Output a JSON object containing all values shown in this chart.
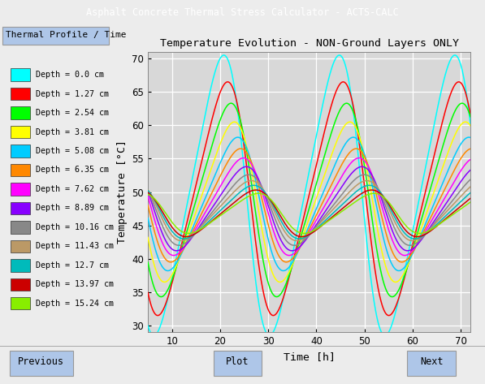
{
  "title": "Temperature Evolution - NON-Ground Layers ONLY",
  "xlabel": "Time [h]",
  "ylabel": "Temperature [°C]",
  "xlim": [
    5,
    72
  ],
  "ylim": [
    29,
    71
  ],
  "xticks": [
    10,
    20,
    30,
    40,
    50,
    60,
    70
  ],
  "yticks": [
    30,
    35,
    40,
    45,
    50,
    55,
    60,
    65,
    70
  ],
  "plot_bg_color": "#d8d8d8",
  "grid_color": "#ffffff",
  "figsize": [
    5.97,
    4.73
  ],
  "dpi": 100,
  "layers": [
    {
      "label": "Depth = 0.0 cm",
      "color": "#00ffff",
      "amplitude": 21.0,
      "phase_shift": 0.0,
      "mean": 49.5
    },
    {
      "label": "Depth = 1.27 cm",
      "color": "#ff0000",
      "amplitude": 17.5,
      "phase_shift": 0.8,
      "mean": 49.0
    },
    {
      "label": "Depth = 2.54 cm",
      "color": "#00ff00",
      "amplitude": 14.5,
      "phase_shift": 1.5,
      "mean": 48.8
    },
    {
      "label": "Depth = 3.81 cm",
      "color": "#ffff00",
      "amplitude": 12.0,
      "phase_shift": 2.2,
      "mean": 48.5
    },
    {
      "label": "Depth = 5.08 cm",
      "color": "#00ccff",
      "amplitude": 10.0,
      "phase_shift": 2.9,
      "mean": 48.2
    },
    {
      "label": "Depth = 6.35 cm",
      "color": "#ff8800",
      "amplitude": 8.5,
      "phase_shift": 3.5,
      "mean": 48.0
    },
    {
      "label": "Depth = 7.62 cm",
      "color": "#ff00ff",
      "amplitude": 7.3,
      "phase_shift": 4.1,
      "mean": 47.8
    },
    {
      "label": "Depth = 8.89 cm",
      "color": "#8800ff",
      "amplitude": 6.3,
      "phase_shift": 4.7,
      "mean": 47.5
    },
    {
      "label": "Depth = 10.16 cm",
      "color": "#888888",
      "amplitude": 5.3,
      "phase_shift": 5.2,
      "mean": 47.3
    },
    {
      "label": "Depth = 11.43 cm",
      "color": "#bb9966",
      "amplitude": 4.5,
      "phase_shift": 5.7,
      "mean": 47.2
    },
    {
      "label": "Depth = 12.7 cm",
      "color": "#00bbbb",
      "amplitude": 4.0,
      "phase_shift": 6.2,
      "mean": 47.0
    },
    {
      "label": "Depth = 13.97 cm",
      "color": "#cc0000",
      "amplitude": 3.5,
      "phase_shift": 6.7,
      "mean": 46.8
    },
    {
      "label": "Depth = 15.24 cm",
      "color": "#88ee00",
      "amplitude": 3.0,
      "phase_shift": 7.2,
      "mean": 46.8
    }
  ],
  "window_bg": "#2b2b2b",
  "window_title": "Asphalt Concrete Thermal Stress Calculator - ACTS-CALC",
  "tab_label": "Thermal Profile / Time",
  "tab_color": "#aec6e8",
  "content_bg": "#ececec",
  "btn_color": "#aec6e8",
  "period": 24.0,
  "t_first_peak": 13.5,
  "t_start": 5.0,
  "t_end": 72.0,
  "skew": 0.35
}
